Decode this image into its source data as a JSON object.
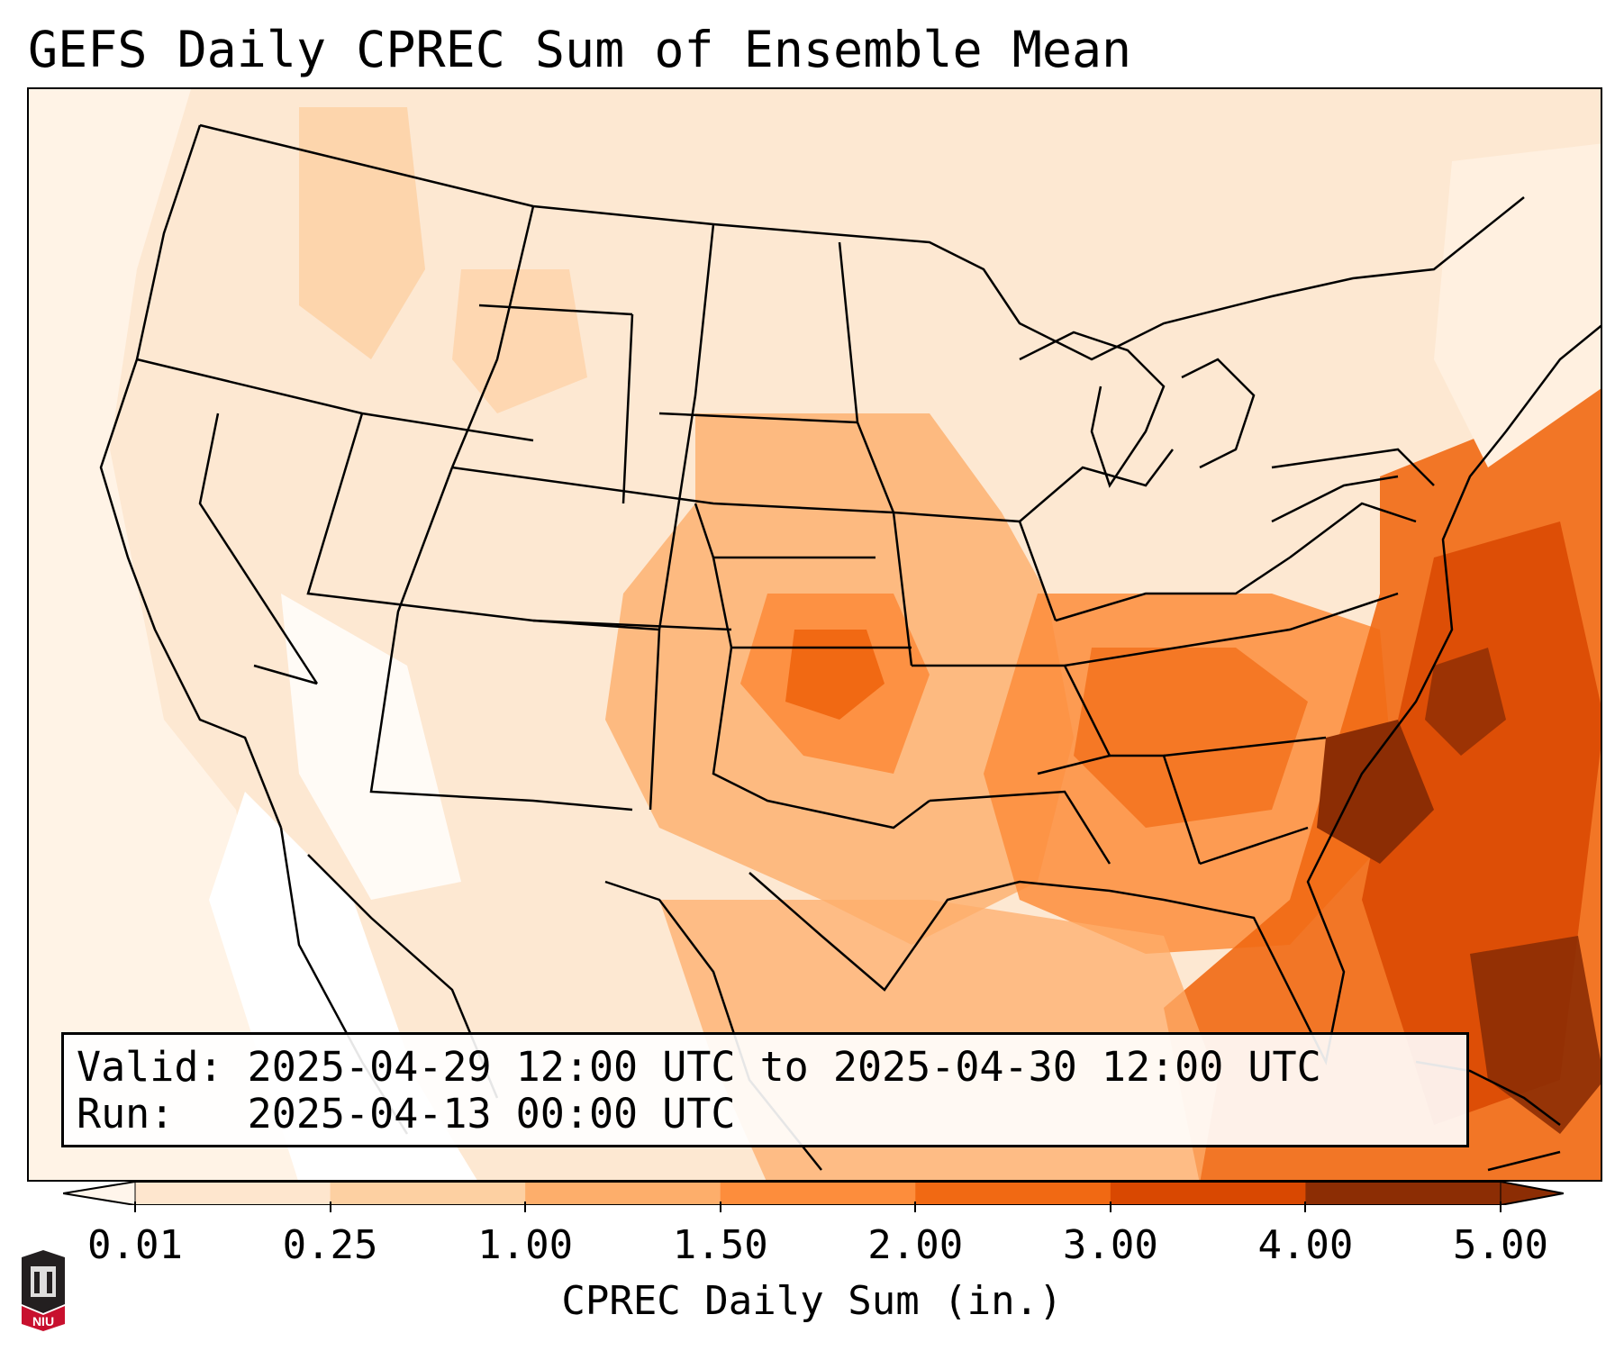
{
  "title": "GEFS Daily CPREC Sum of Ensemble Mean",
  "info": {
    "valid_line": "Valid: 2025-04-29 12:00 UTC to 2025-04-30 12:00 UTC",
    "run_line": "Run:   2025-04-13 00:00 UTC"
  },
  "colorbar": {
    "label": "CPREC Daily Sum (in.)",
    "ticks": [
      "0.01",
      "0.25",
      "1.00",
      "1.50",
      "2.00",
      "3.00",
      "4.00",
      "5.00"
    ],
    "colors": [
      "#fff5eb",
      "#fee6ce",
      "#fdd0a2",
      "#fdae6b",
      "#fd8d3c",
      "#f16913",
      "#d94801",
      "#8c2d04"
    ],
    "extend": "both"
  },
  "logo": {
    "text": "NIU",
    "colors": {
      "dark": "#231f20",
      "red": "#c8102e"
    }
  },
  "map": {
    "region": "Contiguous United States",
    "field": "Ensemble mean convective precipitation daily sum",
    "features": [
      "state boundaries",
      "coastlines",
      "lakes"
    ]
  }
}
